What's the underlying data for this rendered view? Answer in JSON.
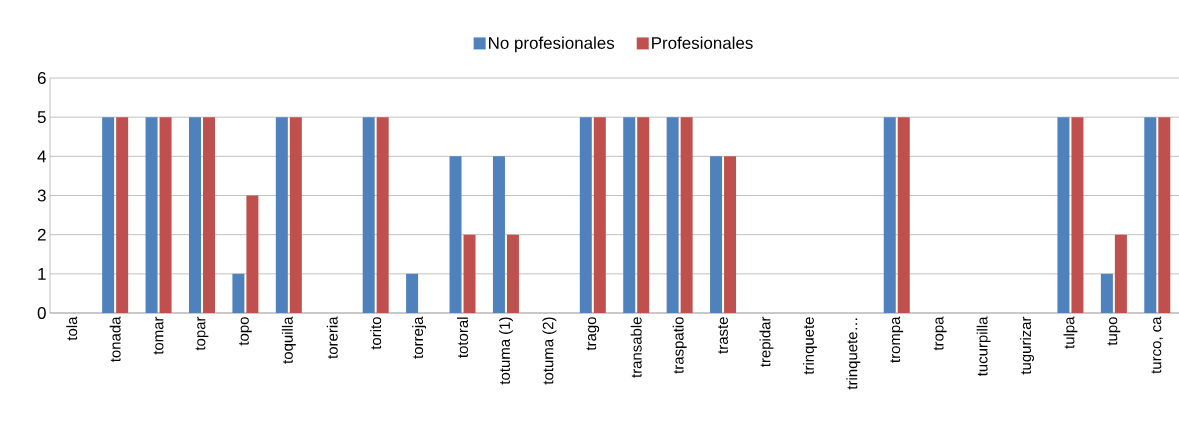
{
  "chart_data": {
    "type": "bar",
    "categories": [
      "tola",
      "tonada",
      "tomar",
      "topar",
      "topo",
      "toquilla",
      "toreria",
      "torito",
      "torreja",
      "totoral",
      "totuma (1)",
      "totuma (2)",
      "trago",
      "transable",
      "traspatio",
      "traste",
      "trepidar",
      "trinquete",
      "trinquete…",
      "trompa",
      "tropa",
      "tucurpilla",
      "tugurizar",
      "tulpa",
      "tupo",
      "turco, ca"
    ],
    "series": [
      {
        "name": "No profesionales",
        "color": "#4f81bd",
        "values": [
          0,
          5,
          5,
          5,
          1,
          5,
          0,
          5,
          1,
          4,
          4,
          0,
          5,
          5,
          5,
          4,
          0,
          0,
          0,
          5,
          0,
          0,
          0,
          5,
          1,
          5
        ]
      },
      {
        "name": "Profesionales",
        "color": "#c0504d",
        "values": [
          0,
          5,
          5,
          5,
          3,
          5,
          0,
          5,
          0,
          2,
          2,
          0,
          5,
          5,
          5,
          4,
          0,
          0,
          0,
          5,
          0,
          0,
          0,
          5,
          2,
          5
        ]
      }
    ],
    "ylim": [
      0,
      6
    ],
    "yticks": [
      0,
      1,
      2,
      3,
      4,
      5,
      6
    ],
    "grid": "y",
    "legend": "top"
  }
}
